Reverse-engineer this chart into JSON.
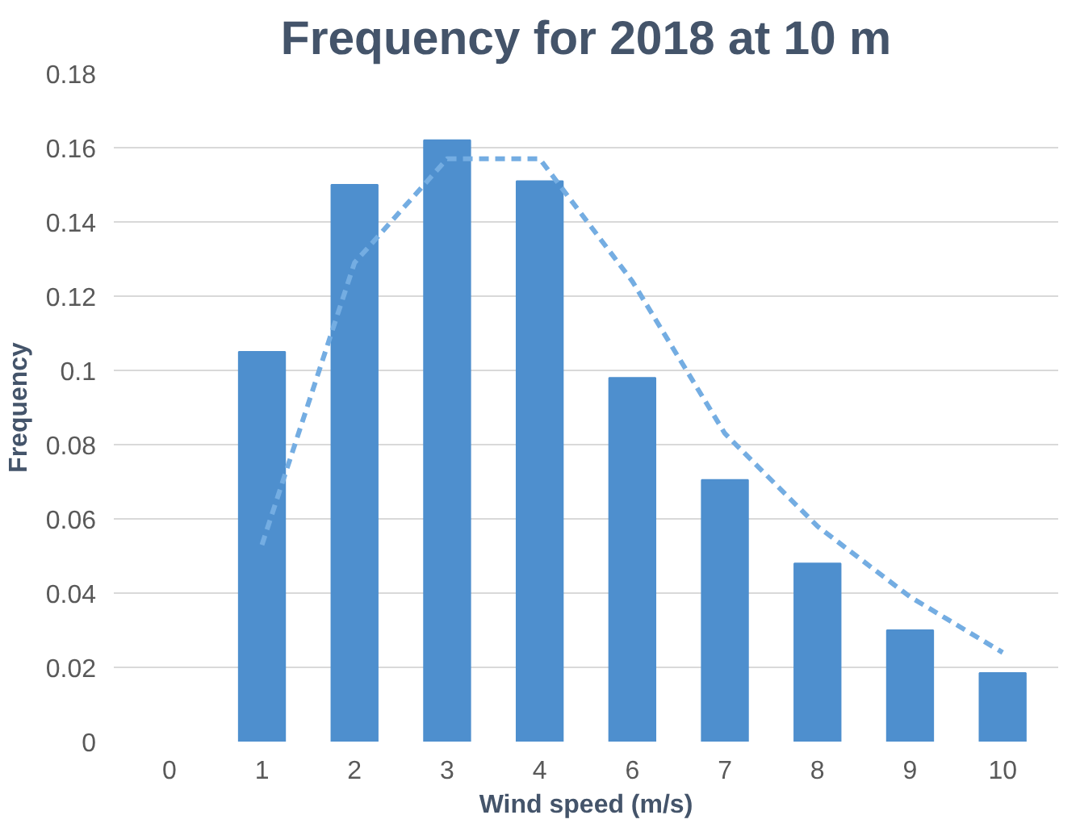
{
  "chart_data": {
    "type": "bar",
    "title": "Frequency for 2018 at 10 m",
    "xlabel": "Wind speed (m/s)",
    "ylabel": "Frequency",
    "categories": [
      "0",
      "1",
      "2",
      "3",
      "4",
      "6",
      "7",
      "8",
      "9",
      "10"
    ],
    "series": [
      {
        "color": "#4e8fce",
        "values": [
          null,
          0.105,
          0.15,
          0.162,
          0.151,
          0.098,
          0.0705,
          0.048,
          0.03,
          0.0185
        ]
      },
      {
        "type": "line",
        "color": "#74ade2",
        "line_style": "dashed",
        "values": [
          null,
          0.053,
          0.129,
          0.157,
          0.157,
          0.124,
          0.083,
          0.058,
          0.039,
          0.024
        ]
      }
    ],
    "ylim": [
      0,
      0.18
    ],
    "yticks": [
      0,
      0.02,
      0.04,
      0.06,
      0.08,
      0.1,
      0.12,
      0.14,
      0.16,
      0.18
    ],
    "grid": "y"
  }
}
